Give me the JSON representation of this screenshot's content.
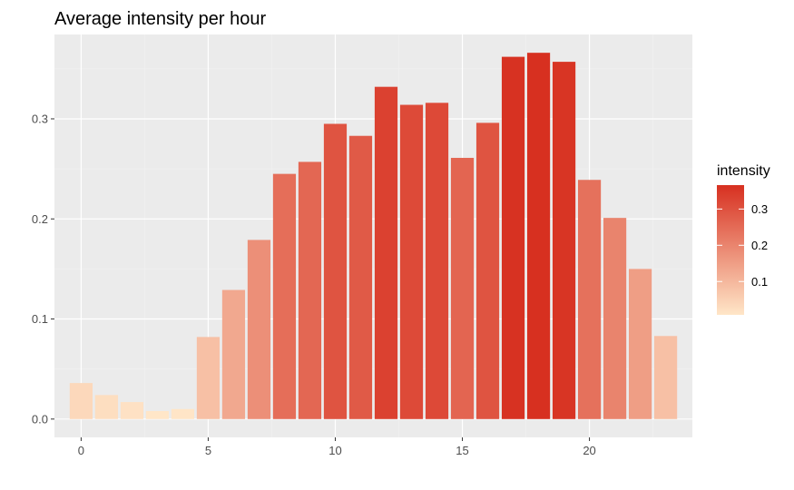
{
  "chart_data": {
    "type": "bar",
    "title": "Average intensity per hour",
    "xlabel": "",
    "ylabel": "",
    "x": [
      0,
      1,
      2,
      3,
      4,
      5,
      6,
      7,
      8,
      9,
      10,
      11,
      12,
      13,
      14,
      15,
      16,
      17,
      18,
      19,
      20,
      21,
      22,
      23
    ],
    "values": [
      0.036,
      0.024,
      0.017,
      0.008,
      0.01,
      0.082,
      0.129,
      0.179,
      0.245,
      0.257,
      0.295,
      0.283,
      0.332,
      0.314,
      0.316,
      0.261,
      0.296,
      0.362,
      0.366,
      0.357,
      0.239,
      0.201,
      0.15,
      0.083
    ],
    "xlim": [
      -1.05,
      24.05
    ],
    "ylim": [
      -0.0183,
      0.3843
    ],
    "x_ticks": [
      0,
      5,
      10,
      15,
      20
    ],
    "x_tick_labels": [
      "0",
      "5",
      "10",
      "15",
      "20"
    ],
    "y_ticks": [
      0.0,
      0.1,
      0.2,
      0.3
    ],
    "y_tick_labels": [
      "0.0",
      "0.1",
      "0.2",
      "0.3"
    ],
    "grid": true,
    "legend": {
      "title": "intensity",
      "placement": "right",
      "type": "colorbar",
      "range": [
        0.008,
        0.366
      ],
      "ticks": [
        0.1,
        0.2,
        0.3
      ],
      "tick_labels": [
        "0.1",
        "0.2",
        "0.3"
      ],
      "color_low": "#ffe6c8",
      "color_high": "#d73020"
    },
    "colors": {
      "panel_background": "#ebebeb",
      "grid_major": "#ffffff",
      "grid_minor": "#f2f2f2"
    }
  }
}
